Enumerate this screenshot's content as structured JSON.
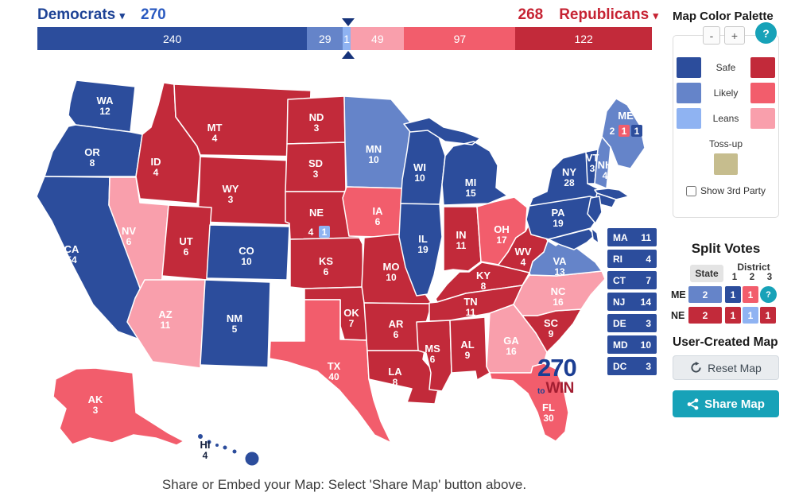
{
  "header": {
    "democrats_label": "Democrats",
    "democrats_ev": "270",
    "republicans_ev": "268",
    "republicans_label": "Republicans",
    "caret": "▾"
  },
  "colors": {
    "safe-d": "#2c4d9c",
    "likely-d": "#6584c9",
    "leans-d": "#8fb3f2",
    "toss": "#c6bd8e",
    "leans-r": "#f99fac",
    "likely-r": "#f25d6c",
    "safe-r": "#c22a3a",
    "teal": "#17a2b8"
  },
  "bar": {
    "segments": [
      {
        "value": "240",
        "rating": "safe-d",
        "pct": 43.9
      },
      {
        "value": "29",
        "rating": "likely-d",
        "pct": 5.8
      },
      {
        "value": "1",
        "rating": "leans-d",
        "pct": 1.3
      },
      {
        "value": "49",
        "rating": "leans-r",
        "pct": 8.7
      },
      {
        "value": "97",
        "rating": "likely-r",
        "pct": 18.1
      },
      {
        "value": "122",
        "rating": "safe-r",
        "pct": 22.2
      }
    ],
    "marker_pct": 50.6
  },
  "palette": {
    "title": "Map Color Palette",
    "minus": "-",
    "plus": "+",
    "help": "?",
    "rows": [
      {
        "label": "Safe",
        "d": "safe-d",
        "r": "safe-r"
      },
      {
        "label": "Likely",
        "d": "likely-d",
        "r": "likely-r"
      },
      {
        "label": "Leans",
        "d": "leans-d",
        "r": "leans-r"
      }
    ],
    "tossup_label": "Toss-up",
    "third_party_label": "Show 3rd Party"
  },
  "split_votes": {
    "title": "Split Votes",
    "col_state": "State",
    "col_district": "District",
    "district_nums": [
      "1",
      "2",
      "3"
    ],
    "help": "?",
    "rows": [
      {
        "state": "ME",
        "state_cell": {
          "text": "2",
          "rating": "likely-d"
        },
        "cells": [
          {
            "text": "1",
            "rating": "safe-d"
          },
          {
            "text": "1",
            "rating": "likely-r"
          },
          {
            "type": "help",
            "text": "?"
          }
        ]
      },
      {
        "state": "NE",
        "state_cell": {
          "text": "2",
          "rating": "safe-r"
        },
        "cells": [
          {
            "text": "1",
            "rating": "safe-r"
          },
          {
            "text": "1",
            "rating": "leans-d"
          },
          {
            "text": "1",
            "rating": "safe-r"
          }
        ]
      }
    ]
  },
  "state_boxes": [
    {
      "abbr": "MA",
      "ev": "11"
    },
    {
      "abbr": "RI",
      "ev": "4"
    },
    {
      "abbr": "CT",
      "ev": "7"
    },
    {
      "abbr": "NJ",
      "ev": "14"
    },
    {
      "abbr": "DE",
      "ev": "3"
    },
    {
      "abbr": "MD",
      "ev": "10"
    },
    {
      "abbr": "DC",
      "ev": "3"
    }
  ],
  "user_map": {
    "title": "User-Created Map",
    "reset_label": "Reset Map",
    "share_label": "Share Map"
  },
  "logo": {
    "line1": "270",
    "to": "to",
    "win": "WIN"
  },
  "footer": {
    "caption": "Share or Embed your Map: Select 'Share Map' button above."
  },
  "map": {
    "states": [
      {
        "abbr": "WA",
        "ev": "12",
        "rating": "safe-d"
      },
      {
        "abbr": "OR",
        "ev": "8",
        "rating": "safe-d"
      },
      {
        "abbr": "CA",
        "ev": "54",
        "rating": "safe-d"
      },
      {
        "abbr": "NV",
        "ev": "6",
        "rating": "leans-r"
      },
      {
        "abbr": "ID",
        "ev": "4",
        "rating": "safe-r"
      },
      {
        "abbr": "MT",
        "ev": "4",
        "rating": "safe-r"
      },
      {
        "abbr": "WY",
        "ev": "3",
        "rating": "safe-r"
      },
      {
        "abbr": "UT",
        "ev": "6",
        "rating": "safe-r"
      },
      {
        "abbr": "CO",
        "ev": "10",
        "rating": "safe-d"
      },
      {
        "abbr": "AZ",
        "ev": "11",
        "rating": "leans-r"
      },
      {
        "abbr": "NM",
        "ev": "5",
        "rating": "safe-d"
      },
      {
        "abbr": "ND",
        "ev": "3",
        "rating": "safe-r"
      },
      {
        "abbr": "SD",
        "ev": "3",
        "rating": "safe-r"
      },
      {
        "abbr": "NE",
        "ev": "4",
        "rating": "safe-r",
        "badges": [
          {
            "text": "4",
            "bg": "none"
          },
          {
            "text": "1",
            "bg": "leans-d"
          }
        ]
      },
      {
        "abbr": "KS",
        "ev": "6",
        "rating": "safe-r"
      },
      {
        "abbr": "OK",
        "ev": "7",
        "rating": "safe-r"
      },
      {
        "abbr": "TX",
        "ev": "40",
        "rating": "likely-r"
      },
      {
        "abbr": "MN",
        "ev": "10",
        "rating": "likely-d"
      },
      {
        "abbr": "IA",
        "ev": "6",
        "rating": "likely-r"
      },
      {
        "abbr": "MO",
        "ev": "10",
        "rating": "safe-r"
      },
      {
        "abbr": "AR",
        "ev": "6",
        "rating": "safe-r"
      },
      {
        "abbr": "LA",
        "ev": "8",
        "rating": "safe-r"
      },
      {
        "abbr": "WI",
        "ev": "10",
        "rating": "safe-d"
      },
      {
        "abbr": "IL",
        "ev": "19",
        "rating": "safe-d"
      },
      {
        "abbr": "MI",
        "ev": "15",
        "rating": "safe-d"
      },
      {
        "abbr": "IN",
        "ev": "11",
        "rating": "safe-r"
      },
      {
        "abbr": "OH",
        "ev": "17",
        "rating": "likely-r"
      },
      {
        "abbr": "KY",
        "ev": "8",
        "rating": "safe-r"
      },
      {
        "abbr": "TN",
        "ev": "11",
        "rating": "safe-r"
      },
      {
        "abbr": "MS",
        "ev": "6",
        "rating": "safe-r"
      },
      {
        "abbr": "AL",
        "ev": "9",
        "rating": "safe-r"
      },
      {
        "abbr": "GA",
        "ev": "16",
        "rating": "leans-r"
      },
      {
        "abbr": "FL",
        "ev": "30",
        "rating": "likely-r"
      },
      {
        "abbr": "SC",
        "ev": "9",
        "rating": "safe-r"
      },
      {
        "abbr": "NC",
        "ev": "16",
        "rating": "leans-r"
      },
      {
        "abbr": "VA",
        "ev": "13",
        "rating": "likely-d"
      },
      {
        "abbr": "WV",
        "ev": "4",
        "rating": "safe-r"
      },
      {
        "abbr": "PA",
        "ev": "19",
        "rating": "safe-d"
      },
      {
        "abbr": "NY",
        "ev": "28",
        "rating": "safe-d"
      },
      {
        "abbr": "VT",
        "ev": "3",
        "rating": "safe-d"
      },
      {
        "abbr": "NH",
        "ev": "4",
        "rating": "likely-d"
      },
      {
        "abbr": "ME",
        "ev": "2",
        "rating": "likely-d",
        "badges": [
          {
            "text": "2",
            "bg": "none"
          },
          {
            "text": "1",
            "bg": "likely-r"
          },
          {
            "text": "1",
            "bg": "safe-d"
          }
        ]
      },
      {
        "abbr": "AK",
        "ev": "3",
        "rating": "likely-r"
      },
      {
        "abbr": "HI",
        "ev": "4",
        "rating": "safe-d",
        "label_dark": true
      },
      {
        "abbr": "MA",
        "rating": "safe-d",
        "no_label": true,
        "key": "MAm"
      },
      {
        "abbr": "CTRI",
        "rating": "safe-d",
        "no_label": true
      },
      {
        "abbr": "NJ",
        "rating": "safe-d",
        "no_label": true,
        "key": "NJm"
      },
      {
        "abbr": "MD",
        "rating": "safe-d",
        "no_label": true,
        "key": "MDm"
      },
      {
        "abbr": "DE",
        "rating": "safe-d",
        "no_label": true,
        "key": "DEm"
      }
    ]
  }
}
